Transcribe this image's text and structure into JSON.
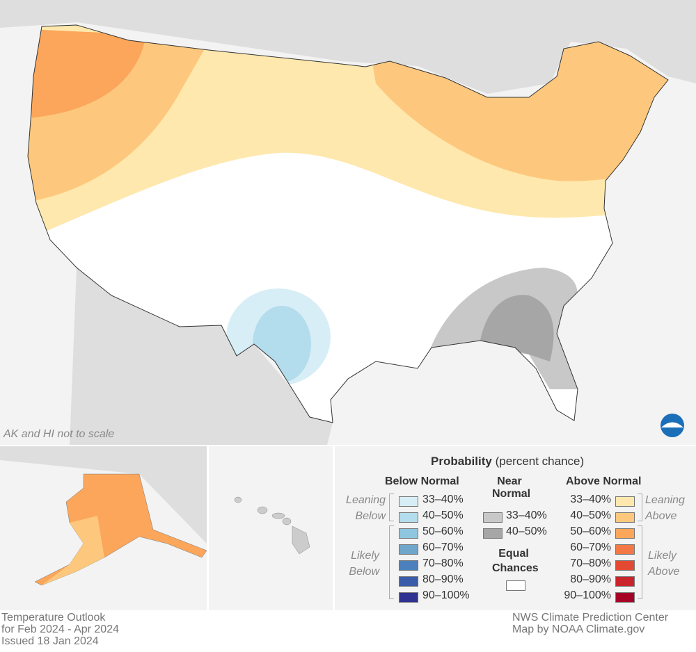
{
  "map": {
    "note": "AK and HI not to scale",
    "logo": "NOAA",
    "colors": {
      "land_outside": "#dedede",
      "water": "#f3f3f3",
      "equal_chances": "#ffffff",
      "state_border": "#333333"
    }
  },
  "legend": {
    "title_bold": "Probability",
    "title_rest": " (percent chance)",
    "below": {
      "header": "Below Normal",
      "leaning": [
        "Leaning",
        "Below"
      ],
      "likely": [
        "Likely",
        "Below"
      ],
      "items": [
        {
          "label": "33–40%",
          "color": "#d7eef6"
        },
        {
          "label": "40–50%",
          "color": "#b3dcec"
        },
        {
          "label": "50–60%",
          "color": "#8fc6df"
        },
        {
          "label": "60–70%",
          "color": "#6ea6cc"
        },
        {
          "label": "70–80%",
          "color": "#4b80bd"
        },
        {
          "label": "80–90%",
          "color": "#3a5ba9"
        },
        {
          "label": "90–100%",
          "color": "#2e3291"
        }
      ]
    },
    "near": {
      "header": [
        "Near",
        "Normal"
      ],
      "items": [
        {
          "label": "33–40%",
          "color": "#c8c8c8"
        },
        {
          "label": "40–50%",
          "color": "#a6a6a6"
        }
      ]
    },
    "equal": {
      "header": [
        "Equal",
        "Chances"
      ],
      "color": "#ffffff"
    },
    "above": {
      "header": "Above Normal",
      "leaning": [
        "Leaning",
        "Above"
      ],
      "likely": [
        "Likely",
        "Above"
      ],
      "items": [
        {
          "label": "33–40%",
          "color": "#ffe8ad"
        },
        {
          "label": "40–50%",
          "color": "#fdc87d"
        },
        {
          "label": "50–60%",
          "color": "#fba65b"
        },
        {
          "label": "60–70%",
          "color": "#f47845"
        },
        {
          "label": "70–80%",
          "color": "#e34a33"
        },
        {
          "label": "80–90%",
          "color": "#c9242b"
        },
        {
          "label": "90–100%",
          "color": "#a50026"
        }
      ]
    }
  },
  "footer": {
    "left": [
      "Temperature Outlook",
      "for Feb 2024 - Apr 2024",
      "Issued 18 Jan 2024"
    ],
    "right": [
      "NWS Climate Prediction Center",
      "Map by NOAA Climate.gov"
    ]
  }
}
